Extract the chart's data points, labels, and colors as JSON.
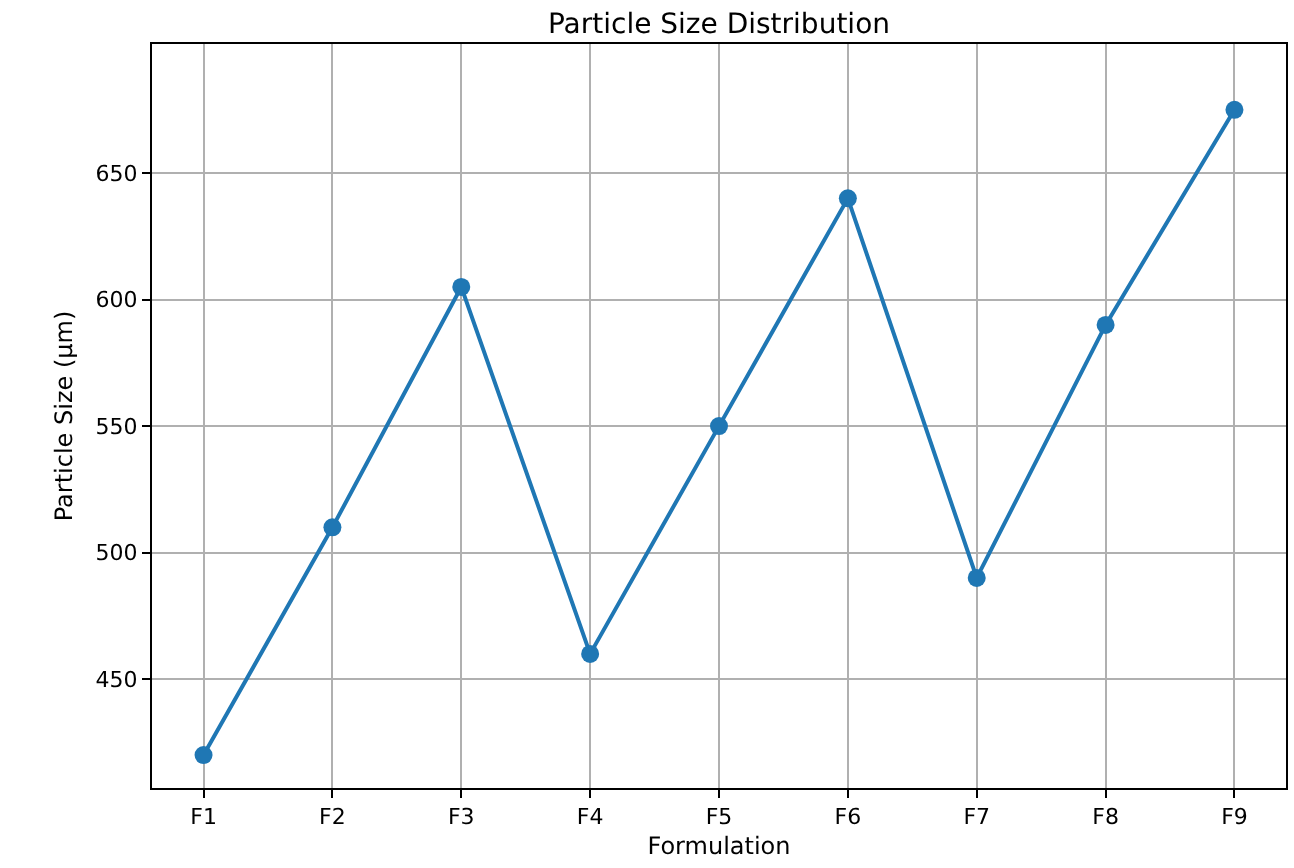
{
  "chart_data": {
    "type": "line",
    "title": "Particle Size Distribution",
    "xlabel": "Formulation",
    "ylabel": "Particle Size (µm)",
    "categories": [
      "F1",
      "F2",
      "F3",
      "F4",
      "F5",
      "F6",
      "F7",
      "F8",
      "F9"
    ],
    "series": [
      {
        "color": "#1f77b4",
        "values": [
          420,
          510,
          605,
          460,
          550,
          640,
          490,
          590,
          675
        ]
      }
    ],
    "ylim": [
      407,
      701
    ],
    "yticks": [
      450,
      500,
      550,
      600,
      650
    ],
    "grid": true,
    "marker": "circle",
    "line_style": "solid"
  }
}
